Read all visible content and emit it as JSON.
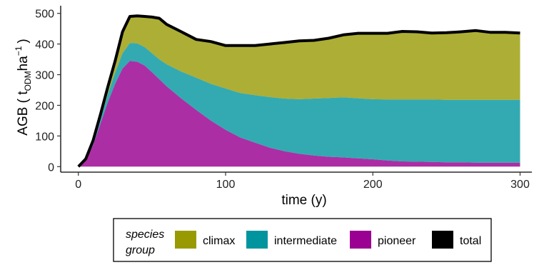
{
  "chart_data": {
    "type": "area",
    "stacked": true,
    "xlabel": "time (y)",
    "ylabel": {
      "text": "AGB ( t",
      "sub": "ODM",
      "mid": "ha",
      "sup": "−1",
      "end": ")"
    },
    "xlim": [
      -12,
      308
    ],
    "ylim": [
      -18,
      525
    ],
    "x_ticks": [
      0,
      100,
      200,
      300
    ],
    "y_ticks": [
      0,
      100,
      200,
      300,
      400,
      500
    ],
    "grid": false,
    "legend": {
      "title_line1": "species",
      "title_line2": "group",
      "position": "bottom",
      "items": [
        {
          "label": "climax",
          "color": "#999a03"
        },
        {
          "label": "intermediate",
          "color": "#00959e"
        },
        {
          "label": "pioneer",
          "color": "#9a0091"
        },
        {
          "label": "total",
          "color": "#000000"
        }
      ]
    },
    "x": [
      0,
      5,
      10,
      15,
      20,
      25,
      30,
      35,
      40,
      45,
      50,
      55,
      60,
      70,
      80,
      90,
      100,
      110,
      120,
      130,
      140,
      150,
      160,
      170,
      180,
      190,
      200,
      210,
      220,
      230,
      240,
      250,
      260,
      270,
      280,
      290,
      300
    ],
    "series": [
      {
        "name": "pioneer",
        "color": "#9a0091",
        "fill_opacity": 0.82,
        "values": [
          0,
          20,
          70,
          140,
          210,
          270,
          320,
          345,
          342,
          330,
          308,
          285,
          262,
          222,
          185,
          150,
          120,
          95,
          78,
          62,
          50,
          42,
          36,
          32,
          30,
          27,
          24,
          20,
          17,
          16,
          15,
          14,
          14,
          13,
          13,
          13,
          13
        ]
      },
      {
        "name": "intermediate",
        "color": "#00959e",
        "fill_opacity": 0.8,
        "values": [
          0,
          4,
          10,
          17,
          27,
          37,
          50,
          58,
          60,
          60,
          62,
          65,
          72,
          88,
          105,
          120,
          135,
          145,
          155,
          165,
          172,
          178,
          186,
          192,
          196,
          196,
          196,
          199,
          202,
          203,
          204,
          204,
          204,
          205,
          205,
          205,
          205
        ]
      },
      {
        "name": "climax",
        "color": "#999a03",
        "fill_opacity": 0.8,
        "values": [
          0,
          1,
          5,
          13,
          23,
          38,
          70,
          87,
          90,
          100,
          118,
          134,
          130,
          130,
          125,
          138,
          140,
          155,
          162,
          173,
          183,
          190,
          190,
          195,
          204,
          212,
          215,
          216,
          222,
          221,
          217,
          219,
          222,
          226,
          220,
          220,
          218
        ]
      },
      {
        "name": "total",
        "color": "#000000",
        "line": true,
        "values": [
          0,
          25,
          85,
          170,
          260,
          345,
          440,
          490,
          492,
          490,
          488,
          484,
          464,
          440,
          415,
          408,
          395,
          395,
          395,
          400,
          405,
          410,
          412,
          419,
          430,
          435,
          435,
          435,
          441,
          440,
          436,
          437,
          440,
          444,
          438,
          438,
          436
        ]
      }
    ]
  }
}
